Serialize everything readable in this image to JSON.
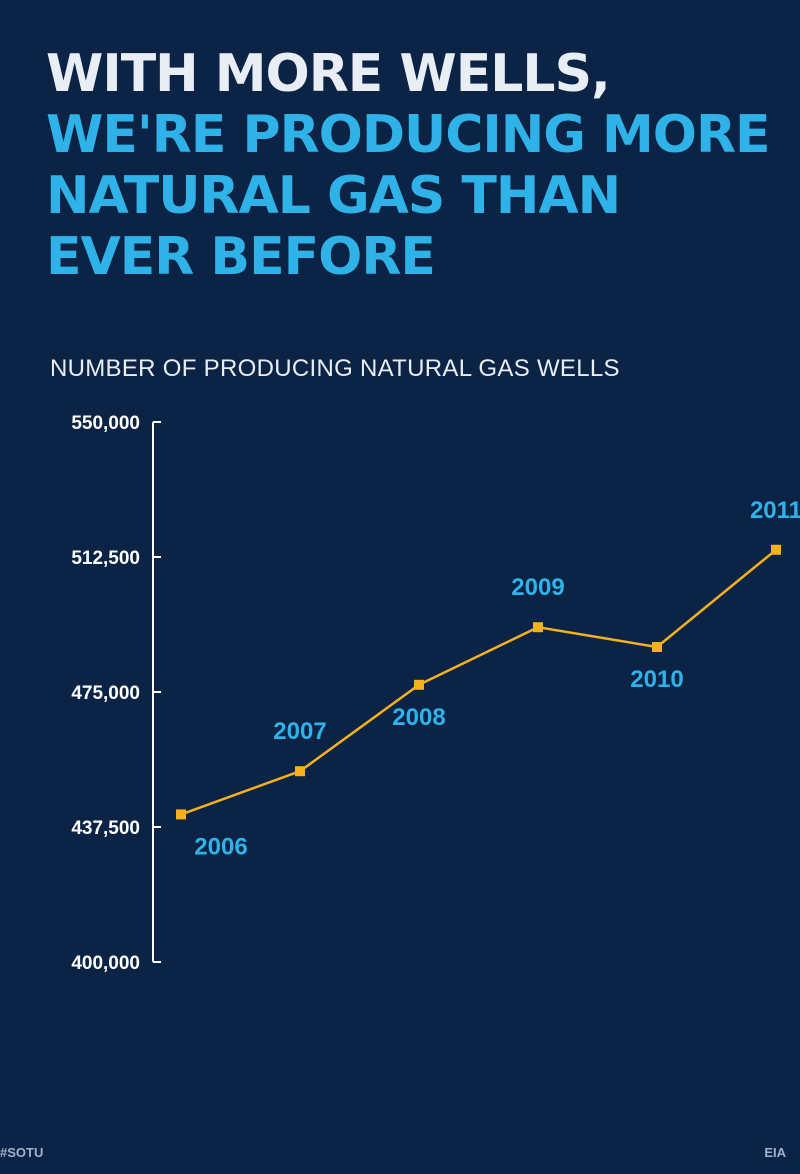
{
  "headline": {
    "line1": "WITH MORE WELLS,",
    "line2": "WE'RE PRODUCING MORE",
    "line3": "NATURAL GAS THAN",
    "line4": "EVER BEFORE"
  },
  "footer": {
    "hashtag": "#SOTU",
    "source": "EIA"
  },
  "colors": {
    "background": "#0b2345",
    "accent_blue": "#2fb2e8",
    "line": "#f5b21c",
    "text": "#e9eef4"
  },
  "chart_data": {
    "type": "line",
    "title": "NUMBER OF PRODUCING NATURAL GAS WELLS",
    "x": [
      "2006",
      "2007",
      "2008",
      "2009",
      "2010",
      "2011"
    ],
    "y": [
      441000,
      453000,
      477000,
      493000,
      487500,
      514500
    ],
    "ylim": [
      400000,
      550000
    ],
    "yticks": [
      550000,
      512500,
      475000,
      437500,
      400000
    ],
    "ytick_labels": [
      "550,000",
      "512,500",
      "475,000",
      "437,500",
      "400,000"
    ],
    "grid": false,
    "legend": "none"
  }
}
